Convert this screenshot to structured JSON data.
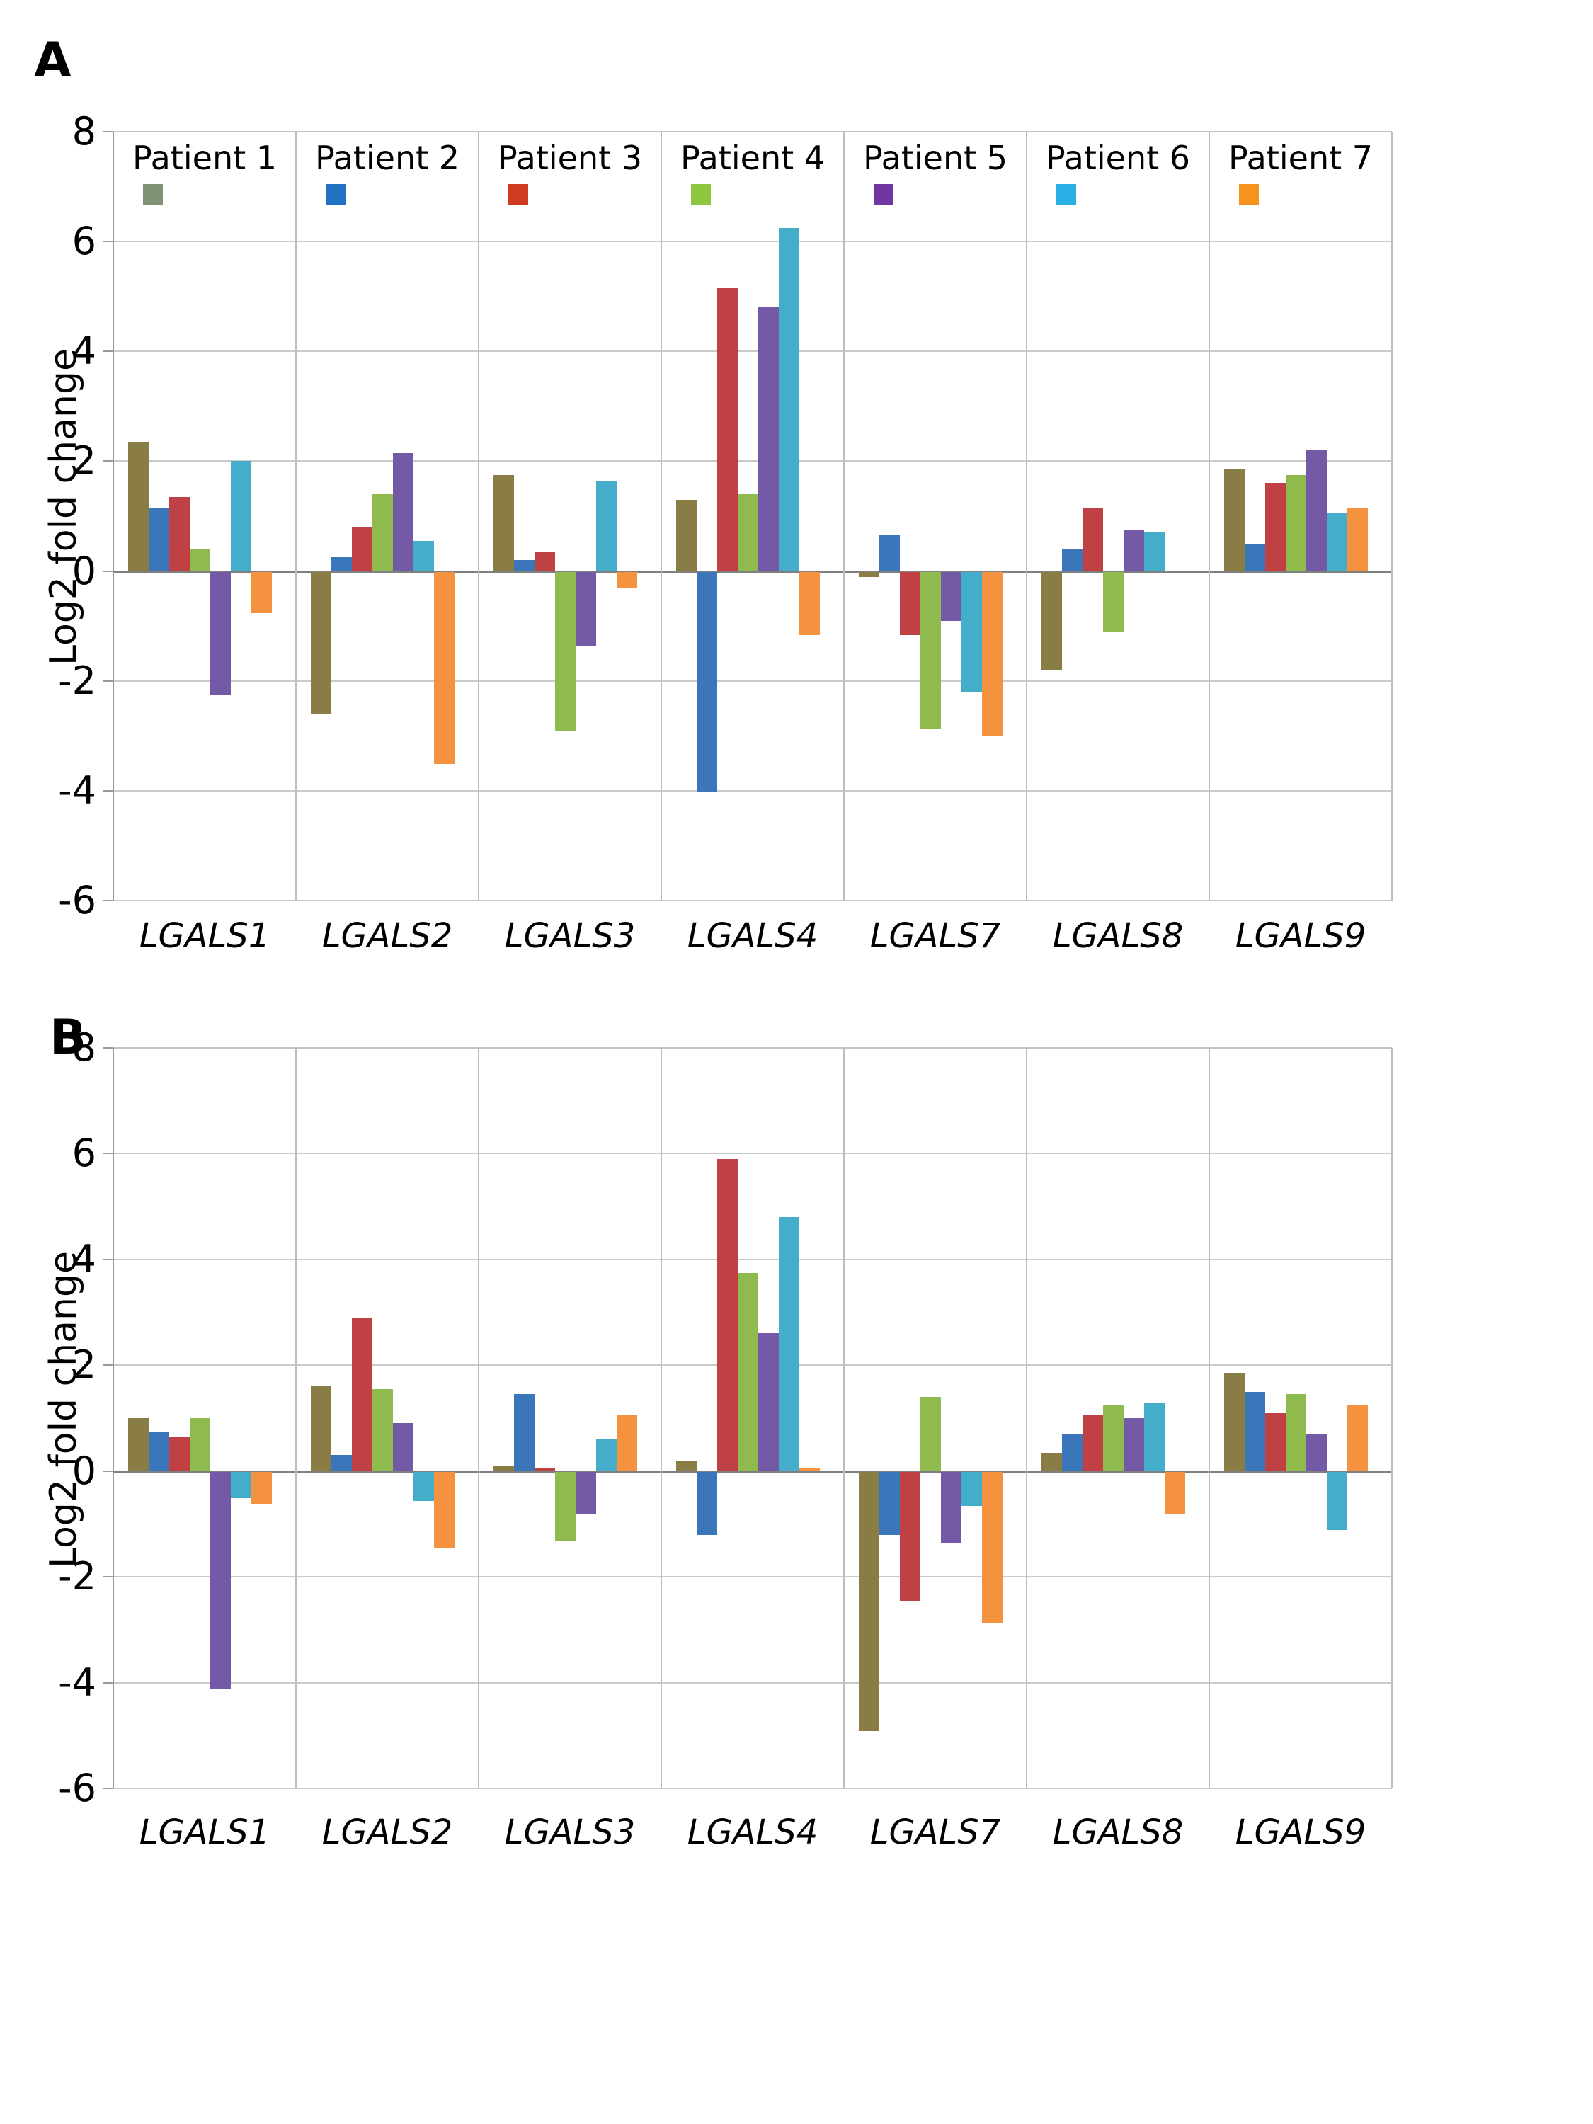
{
  "figure": {
    "y_axis_label": "Log2 fold change",
    "y_ticks": [
      8,
      6,
      4,
      2,
      0,
      -2,
      -4,
      -6
    ],
    "panels": [
      {
        "label": "A"
      },
      {
        "label": "B"
      }
    ]
  },
  "legend": {
    "position": "top",
    "items": [
      {
        "label": "Patient 1",
        "swatch_color": "#7e9474"
      },
      {
        "label": "Patient 2",
        "swatch_color": "#2272c3"
      },
      {
        "label": "Patient 3",
        "swatch_color": "#cc3b22"
      },
      {
        "label": "Patient 4",
        "swatch_color": "#8dc63f"
      },
      {
        "label": "Patient 5",
        "swatch_color": "#7136a2"
      },
      {
        "label": "Patient 6",
        "swatch_color": "#2aaee6"
      },
      {
        "label": "Patient 7",
        "swatch_color": "#f6921e"
      }
    ]
  },
  "chart_data": [
    {
      "type": "bar",
      "panel": "A",
      "ylabel": "Log2 fold change",
      "ylim": [
        -6,
        8
      ],
      "yticks": [
        8,
        6,
        4,
        2,
        0,
        -2,
        -4,
        -6
      ],
      "grid": true,
      "legend_position": "top",
      "categories": [
        "LGALS1",
        "LGALS2",
        "LGALS3",
        "LGALS4",
        "LGALS7",
        "LGALS8",
        "LGALS9"
      ],
      "series": [
        {
          "name": "Patient 1",
          "color": "#8a7c45",
          "values": [
            2.35,
            -2.6,
            1.75,
            1.3,
            -0.1,
            -1.8,
            1.85
          ]
        },
        {
          "name": "Patient 2",
          "color": "#3b76bb",
          "values": [
            1.15,
            0.25,
            0.2,
            -4.0,
            0.65,
            0.4,
            0.5
          ]
        },
        {
          "name": "Patient 3",
          "color": "#bf4143",
          "values": [
            1.35,
            0.8,
            0.35,
            5.15,
            -1.15,
            1.15,
            1.6
          ]
        },
        {
          "name": "Patient 4",
          "color": "#8fba4e",
          "values": [
            0.4,
            1.4,
            -2.9,
            1.4,
            -2.85,
            -1.1,
            1.75
          ]
        },
        {
          "name": "Patient 5",
          "color": "#7459a7",
          "values": [
            -2.25,
            2.15,
            -1.35,
            4.8,
            -0.9,
            0.75,
            2.2
          ]
        },
        {
          "name": "Patient 6",
          "color": "#44adca",
          "values": [
            2.0,
            0.55,
            1.65,
            6.25,
            -2.2,
            0.7,
            1.05
          ]
        },
        {
          "name": "Patient 7",
          "color": "#f59240",
          "values": [
            -0.75,
            -3.5,
            -0.3,
            -1.15,
            -3.0,
            0.0,
            1.15
          ]
        }
      ]
    },
    {
      "type": "bar",
      "panel": "B",
      "ylabel": "Log2 fold change",
      "ylim": [
        -6,
        8
      ],
      "yticks": [
        8,
        6,
        4,
        2,
        0,
        -2,
        -4,
        -6
      ],
      "grid": true,
      "legend_position": "none",
      "categories": [
        "LGALS1",
        "LGALS2",
        "LGALS3",
        "LGALS4",
        "LGALS7",
        "LGALS8",
        "LGALS9"
      ],
      "series": [
        {
          "name": "Patient 1",
          "color": "#8a7c45",
          "values": [
            1.0,
            1.6,
            0.1,
            0.2,
            -4.9,
            0.35,
            1.85
          ]
        },
        {
          "name": "Patient 2",
          "color": "#3b76bb",
          "values": [
            0.75,
            0.3,
            1.45,
            -1.2,
            -1.2,
            0.7,
            1.5
          ]
        },
        {
          "name": "Patient 3",
          "color": "#bf4143",
          "values": [
            0.65,
            2.9,
            0.05,
            5.9,
            -2.45,
            1.05,
            1.1
          ]
        },
        {
          "name": "Patient 4",
          "color": "#8fba4e",
          "values": [
            1.0,
            1.55,
            -1.3,
            3.75,
            1.4,
            1.25,
            1.45
          ]
        },
        {
          "name": "Patient 5",
          "color": "#7459a7",
          "values": [
            -4.1,
            0.9,
            -0.8,
            2.6,
            -1.35,
            1.0,
            0.7
          ]
        },
        {
          "name": "Patient 6",
          "color": "#44adca",
          "values": [
            -0.5,
            -0.55,
            0.6,
            4.8,
            -0.65,
            1.3,
            -1.1
          ]
        },
        {
          "name": "Patient 7",
          "color": "#f59240",
          "values": [
            -0.6,
            -1.45,
            1.05,
            0.05,
            -2.85,
            -0.8,
            1.25
          ]
        }
      ]
    }
  ]
}
